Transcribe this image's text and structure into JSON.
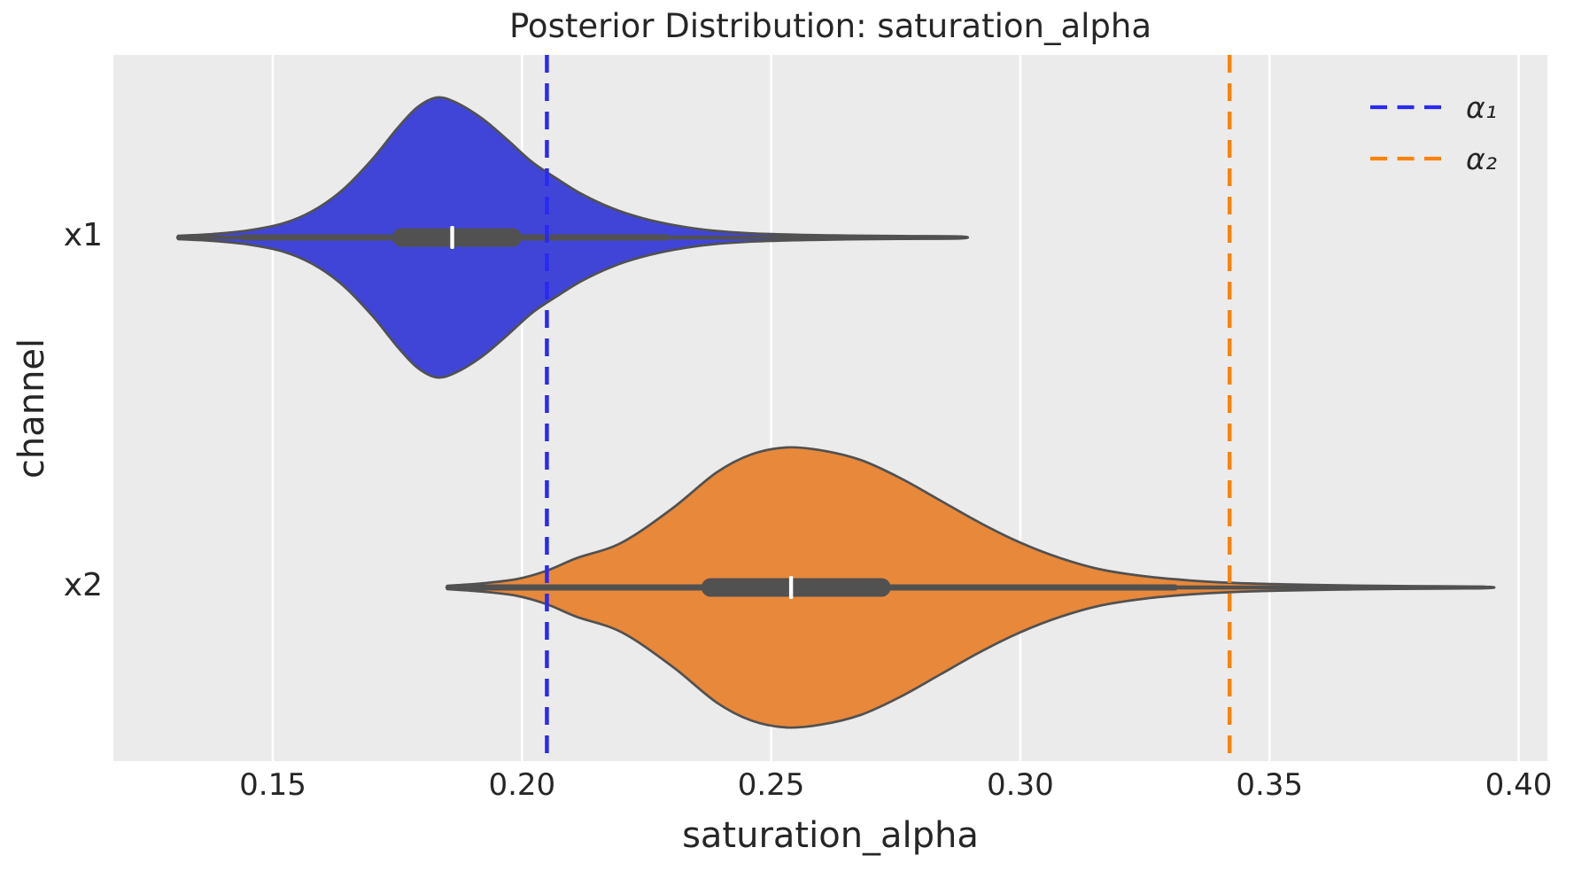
{
  "figure": {
    "title": "Posterior Distribution: saturation_alpha",
    "xlabel": "saturation_alpha",
    "ylabel": "channel"
  },
  "chart_data": {
    "type": "violin",
    "orientation": "horizontal",
    "title": "Posterior Distribution: saturation_alpha",
    "xlabel": "saturation_alpha",
    "ylabel": "channel",
    "categories": [
      "x1",
      "x2"
    ],
    "x_ticks": [
      0.15,
      0.2,
      0.25,
      0.3,
      0.35,
      0.4
    ],
    "x_tick_labels": [
      "0.15",
      "0.20",
      "0.25",
      "0.30",
      "0.35",
      "0.40"
    ],
    "xlim": [
      0.118,
      0.406
    ],
    "grid": true,
    "colors": {
      "axes_background": "#ebebeb",
      "grid": "#ffffff",
      "outline": "#515151",
      "median_tick": "#ffffff",
      "text": "#262626"
    },
    "violins": [
      {
        "channel": "x1",
        "fill": "#4045d8",
        "median": 0.186,
        "q1": 0.174,
        "q3": 0.2,
        "whisker_low": 0.144,
        "whisker_high": 0.229,
        "support": [
          0.131,
          0.288
        ],
        "peak": 0.183,
        "profile": [
          [
            0.131,
            0.012
          ],
          [
            0.138,
            0.025
          ],
          [
            0.145,
            0.05
          ],
          [
            0.152,
            0.1
          ],
          [
            0.158,
            0.19
          ],
          [
            0.164,
            0.34
          ],
          [
            0.17,
            0.56
          ],
          [
            0.175,
            0.78
          ],
          [
            0.179,
            0.93
          ],
          [
            0.183,
            1.0
          ],
          [
            0.187,
            0.96
          ],
          [
            0.192,
            0.85
          ],
          [
            0.197,
            0.7
          ],
          [
            0.202,
            0.54
          ],
          [
            0.207,
            0.42
          ],
          [
            0.212,
            0.31
          ],
          [
            0.218,
            0.21
          ],
          [
            0.224,
            0.14
          ],
          [
            0.231,
            0.085
          ],
          [
            0.238,
            0.05
          ],
          [
            0.246,
            0.03
          ],
          [
            0.255,
            0.02
          ],
          [
            0.265,
            0.014
          ],
          [
            0.276,
            0.01
          ],
          [
            0.288,
            0.007
          ]
        ]
      },
      {
        "channel": "x2",
        "fill": "#e8883a",
        "median": 0.254,
        "q1": 0.236,
        "q3": 0.274,
        "whisker_low": 0.19,
        "whisker_high": 0.331,
        "support": [
          0.185,
          0.393
        ],
        "peak": 0.253,
        "profile": [
          [
            0.185,
            0.012
          ],
          [
            0.192,
            0.03
          ],
          [
            0.199,
            0.06
          ],
          [
            0.205,
            0.12
          ],
          [
            0.211,
            0.21
          ],
          [
            0.22,
            0.32
          ],
          [
            0.23,
            0.56
          ],
          [
            0.239,
            0.82
          ],
          [
            0.246,
            0.95
          ],
          [
            0.253,
            1.0
          ],
          [
            0.26,
            0.98
          ],
          [
            0.268,
            0.91
          ],
          [
            0.276,
            0.78
          ],
          [
            0.284,
            0.62
          ],
          [
            0.292,
            0.46
          ],
          [
            0.3,
            0.32
          ],
          [
            0.308,
            0.21
          ],
          [
            0.316,
            0.13
          ],
          [
            0.325,
            0.08
          ],
          [
            0.334,
            0.05
          ],
          [
            0.343,
            0.032
          ],
          [
            0.353,
            0.022
          ],
          [
            0.364,
            0.015
          ],
          [
            0.376,
            0.01
          ],
          [
            0.393,
            0.006
          ]
        ]
      }
    ],
    "reference_lines": [
      {
        "label": "α₁",
        "value": 0.205,
        "color": "#2a2af0",
        "style": "dashed"
      },
      {
        "label": "α₂",
        "value": 0.342,
        "color": "#f98309",
        "style": "dashed"
      }
    ],
    "legend": {
      "position": "upper right",
      "entries": [
        {
          "label": "α₁",
          "color": "#2a2af0",
          "style": "dashed"
        },
        {
          "label": "α₂",
          "color": "#f98309",
          "style": "dashed"
        }
      ]
    }
  }
}
